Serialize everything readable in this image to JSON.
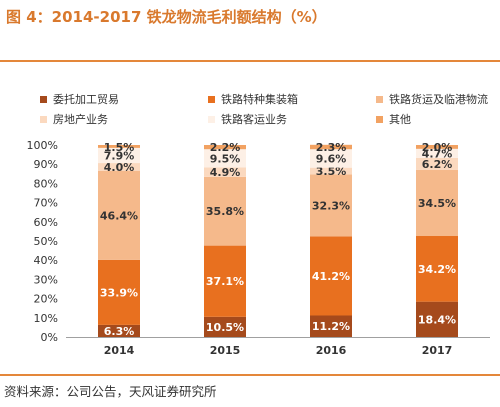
{
  "title": "图 4：2014-2017 铁龙物流毛利额结构（%）",
  "source": "资料来源：公司公告，天风证券研究所",
  "chart_data": {
    "type": "bar",
    "stacked": true,
    "categories": [
      "2014",
      "2015",
      "2016",
      "2017"
    ],
    "ylim": [
      0,
      100
    ],
    "y_ticks": [
      "0%",
      "10%",
      "20%",
      "30%",
      "40%",
      "50%",
      "60%",
      "70%",
      "80%",
      "90%",
      "100%"
    ],
    "legend_position": "top",
    "series": [
      {
        "name": "委托加工贸易",
        "color": "#a54a1c",
        "values": [
          6.3,
          10.5,
          11.2,
          18.4
        ],
        "labels": [
          "6.3%",
          "10.5%",
          "11.2%",
          "18.4%"
        ]
      },
      {
        "name": "铁路特种集装箱",
        "color": "#e8701f",
        "values": [
          33.9,
          37.1,
          41.2,
          34.2
        ],
        "labels": [
          "33.9%",
          "37.1%",
          "41.2%",
          "34.2%"
        ]
      },
      {
        "name": "铁路货运及临港物流",
        "color": "#f5b98b",
        "values": [
          46.4,
          35.8,
          32.3,
          34.5
        ],
        "labels": [
          "46.4%",
          "35.8%",
          "32.3%",
          "34.5%"
        ]
      },
      {
        "name": "房地产业务",
        "color": "#fbd9bf",
        "values": [
          4.0,
          4.9,
          3.5,
          6.2
        ],
        "labels": [
          "4.0%",
          "4.9%",
          "3.5%",
          "6.2%"
        ]
      },
      {
        "name": "铁路客运业务",
        "color": "#fdf0e6",
        "values": [
          7.9,
          9.5,
          9.6,
          4.7
        ],
        "labels": [
          "7.9%",
          "9.5%",
          "9.6%",
          "4.7%"
        ]
      },
      {
        "name": "其他",
        "color": "#f2a262",
        "values": [
          1.5,
          2.2,
          2.3,
          2.0
        ],
        "labels": [
          "1.5%",
          "2.2%",
          "2.3%",
          "2.0%"
        ]
      }
    ]
  }
}
